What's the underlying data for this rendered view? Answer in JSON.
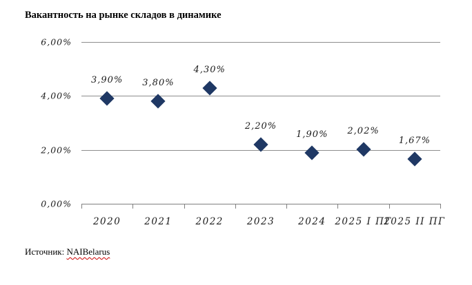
{
  "title": "Вакантность на рынке складов в динамике",
  "source": {
    "prefix": "Источник: ",
    "name": "NAIBelarus"
  },
  "colors": {
    "marker": "#1f3864",
    "gridline": "#8c8c8c",
    "axis": "#7f7f7f",
    "label_text": "#1a1a1a"
  },
  "chart_data": {
    "type": "scatter",
    "title": "Вакантность на рынке складов в динамике",
    "categories": [
      "2020",
      "2021",
      "2022",
      "2023",
      "2024",
      "2025 I ПГ",
      "2025 II ПГ"
    ],
    "values": [
      3.9,
      3.8,
      4.3,
      2.2,
      1.9,
      2.02,
      1.67
    ],
    "point_labels": [
      "3,90%",
      "3,80%",
      "4,30%",
      "2,20%",
      "1,90%",
      "2,02%",
      "1,67%"
    ],
    "y_tick_labels": [
      "6,00%",
      "4,00%",
      "2,00%",
      "0,00%"
    ],
    "y_tick_values": [
      6,
      4,
      2,
      0
    ],
    "ylim": [
      0,
      6
    ],
    "xlabel": "",
    "ylabel": "",
    "grid": true,
    "legend_position": "none",
    "marker_shape": "diamond"
  }
}
